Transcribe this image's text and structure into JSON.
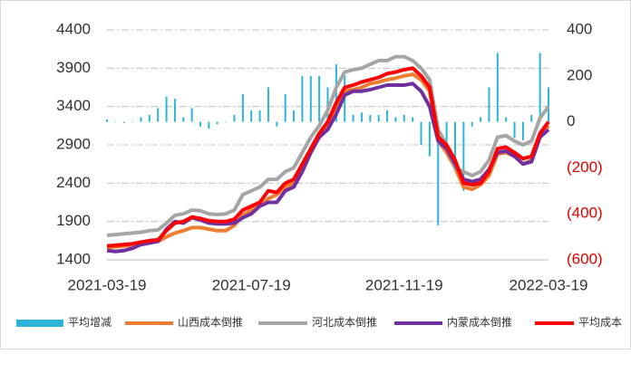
{
  "chart_data": {
    "type": "bar-line",
    "categories": [
      "2021-03-19",
      null,
      null,
      null,
      null,
      null,
      null,
      null,
      null,
      null,
      null,
      null,
      null,
      null,
      null,
      null,
      null,
      "2021-07-19",
      null,
      null,
      null,
      null,
      null,
      null,
      null,
      null,
      null,
      null,
      null,
      null,
      null,
      null,
      null,
      null,
      null,
      "2021-11-19",
      null,
      null,
      null,
      null,
      null,
      null,
      null,
      null,
      null,
      null,
      null,
      null,
      null,
      null,
      null,
      null,
      "2022-03-19"
    ],
    "ylim": [
      1400,
      4400
    ],
    "yticks": [
      1400,
      1900,
      2400,
      2900,
      3400,
      3900,
      4400
    ],
    "y2lim": [
      -600,
      400
    ],
    "y2ticks": [
      {
        "value": -600,
        "label": "(600)"
      },
      {
        "value": -400,
        "label": "(400)"
      },
      {
        "value": -200,
        "label": "(200)"
      },
      0,
      200,
      400
    ],
    "grid": true,
    "series": [
      {
        "name": "平均增减",
        "type": "bar",
        "axis": "y2",
        "color": "#2cb5d8",
        "values": [
          10,
          0,
          -5,
          0,
          20,
          30,
          60,
          110,
          100,
          20,
          60,
          -20,
          -30,
          -10,
          0,
          30,
          120,
          50,
          50,
          150,
          -20,
          120,
          50,
          200,
          200,
          200,
          150,
          250,
          200,
          30,
          40,
          30,
          30,
          50,
          20,
          30,
          20,
          -100,
          -150,
          -450,
          -100,
          -200,
          -300,
          -20,
          20,
          150,
          300,
          20,
          -70,
          -80,
          30,
          300,
          150
        ]
      },
      {
        "name": "山西成本倒推",
        "type": "line",
        "color": "#ed7d31",
        "values": [
          1560,
          1570,
          1580,
          1590,
          1600,
          1620,
          1640,
          1700,
          1750,
          1780,
          1820,
          1820,
          1800,
          1780,
          1780,
          1850,
          1980,
          2050,
          2100,
          2200,
          2250,
          2350,
          2400,
          2600,
          2800,
          3000,
          3150,
          3400,
          3600,
          3620,
          3650,
          3700,
          3720,
          3750,
          3770,
          3800,
          3820,
          3750,
          3600,
          2950,
          2800,
          2600,
          2350,
          2320,
          2380,
          2500,
          2780,
          2800,
          2750,
          2650,
          2700,
          3000,
          3150
        ]
      },
      {
        "name": "河北成本倒推",
        "type": "line",
        "color": "#a5a5a5",
        "values": [
          1720,
          1730,
          1740,
          1750,
          1760,
          1780,
          1790,
          1880,
          1980,
          2000,
          2050,
          2040,
          2000,
          1990,
          2000,
          2050,
          2250,
          2300,
          2350,
          2450,
          2450,
          2550,
          2600,
          2800,
          3000,
          3150,
          3350,
          3650,
          3850,
          3880,
          3900,
          3950,
          4000,
          4000,
          4050,
          4050,
          4000,
          3900,
          3750,
          3100,
          2900,
          2600,
          2550,
          2500,
          2550,
          2700,
          3000,
          3020,
          2950,
          2900,
          2950,
          3250,
          3400
        ]
      },
      {
        "name": "内蒙成本倒推",
        "type": "line",
        "color": "#7030a0",
        "values": [
          1520,
          1510,
          1520,
          1550,
          1600,
          1620,
          1640,
          1800,
          1900,
          1880,
          1950,
          1920,
          1880,
          1870,
          1870,
          1880,
          1950,
          2000,
          2100,
          2150,
          2150,
          2300,
          2350,
          2550,
          2800,
          3000,
          3100,
          3300,
          3550,
          3600,
          3600,
          3620,
          3650,
          3680,
          3680,
          3680,
          3700,
          3600,
          3400,
          2950,
          2850,
          2650,
          2450,
          2420,
          2450,
          2580,
          2800,
          2820,
          2750,
          2650,
          2680,
          3000,
          3100
        ]
      },
      {
        "name": "平均成本",
        "type": "line",
        "color": "#ff0000",
        "values": [
          1580,
          1590,
          1600,
          1610,
          1630,
          1650,
          1660,
          1780,
          1880,
          1900,
          1960,
          1940,
          1910,
          1900,
          1900,
          1930,
          2050,
          2100,
          2150,
          2300,
          2280,
          2400,
          2450,
          2650,
          2850,
          3050,
          3200,
          3450,
          3650,
          3680,
          3720,
          3750,
          3780,
          3830,
          3850,
          3880,
          3900,
          3800,
          3650,
          3000,
          2900,
          2700,
          2400,
          2380,
          2400,
          2550,
          2850,
          2870,
          2800,
          2720,
          2750,
          3050,
          3200
        ]
      }
    ]
  }
}
